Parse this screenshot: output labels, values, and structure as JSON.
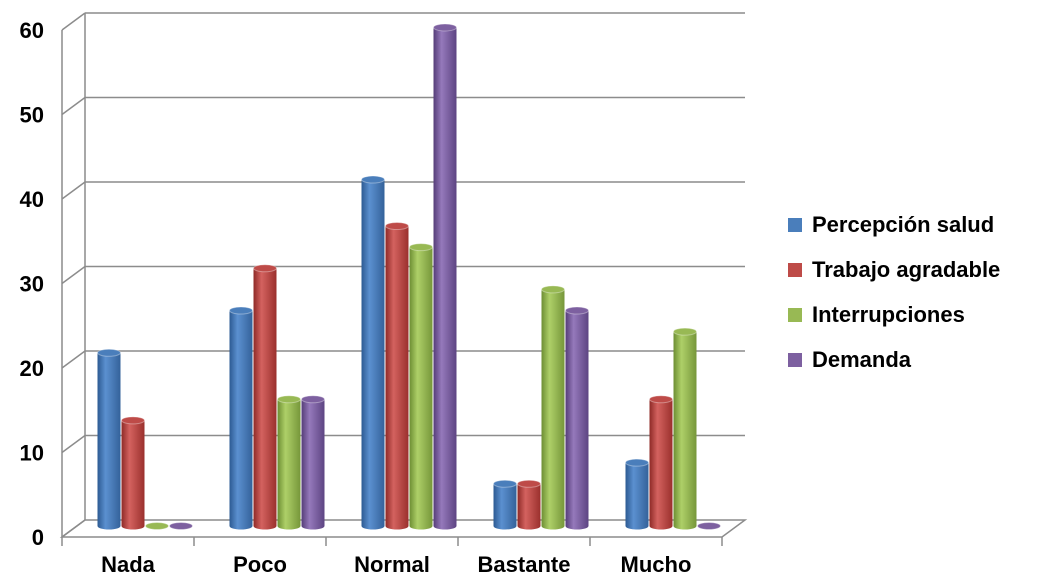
{
  "chart_data": {
    "type": "bar",
    "categories": [
      "Nada",
      "Poco",
      "Normal",
      "Bastante",
      "Mucho"
    ],
    "series": [
      {
        "name": "Percepción salud",
        "color": "#4a7ebb",
        "values": [
          20.5,
          25.5,
          41,
          5,
          7.5
        ]
      },
      {
        "name": "Trabajo agradable",
        "color": "#be4b48",
        "values": [
          12.5,
          30.5,
          35.5,
          5,
          15
        ]
      },
      {
        "name": "Interrupciones",
        "color": "#98b954",
        "values": [
          0,
          15,
          33,
          28,
          23
        ]
      },
      {
        "name": "Demanda",
        "color": "#7d60a0",
        "values": [
          0,
          15,
          59,
          25.5,
          0
        ]
      }
    ],
    "ylim": [
      0,
      60
    ],
    "yticks": [
      0,
      10,
      20,
      30,
      40,
      50,
      60
    ],
    "grid": true,
    "legend": "right",
    "title": "",
    "xlabel": "",
    "ylabel": ""
  }
}
